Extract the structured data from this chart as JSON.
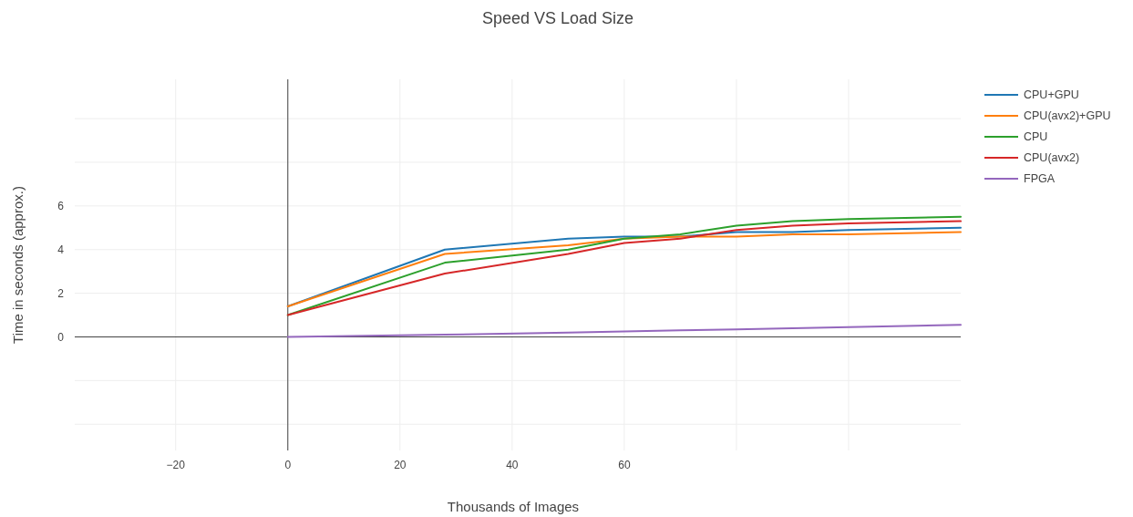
{
  "chart_data": {
    "type": "line",
    "title": "Speed VS Load Size",
    "xlabel": "Thousands of Images",
    "ylabel": "Time in seconds (approx.)",
    "x": [
      0,
      28,
      50,
      60,
      70,
      80,
      90,
      100,
      120
    ],
    "series": [
      {
        "name": "CPU+GPU",
        "color": "#1f77b4",
        "values": [
          1.4,
          4.0,
          4.5,
          4.6,
          4.6,
          4.8,
          4.8,
          4.9,
          5.0
        ]
      },
      {
        "name": "CPU(avx2)+GPU",
        "color": "#ff7f0e",
        "values": [
          1.4,
          3.8,
          4.2,
          4.5,
          4.6,
          4.6,
          4.7,
          4.7,
          4.8
        ]
      },
      {
        "name": "CPU",
        "color": "#2ca02c",
        "values": [
          1.0,
          3.4,
          4.0,
          4.5,
          4.7,
          5.1,
          5.3,
          5.4,
          5.5
        ]
      },
      {
        "name": "CPU(avx2)",
        "color": "#d62728",
        "values": [
          1.0,
          2.9,
          3.8,
          4.3,
          4.5,
          4.9,
          5.1,
          5.2,
          5.3
        ]
      },
      {
        "name": "FPGA",
        "color": "#9467bd",
        "values": [
          0,
          0.1,
          0.2,
          0.25,
          0.3,
          0.35,
          0.4,
          0.45,
          0.55
        ]
      }
    ],
    "xlim": [
      -38,
      120
    ],
    "xticks": [
      -20,
      0,
      20,
      40,
      60,
      {
        "value": 80,
        "label": null
      },
      {
        "value": 100,
        "label": null
      }
    ],
    "ylim": [
      -5.2,
      11.8
    ],
    "yticks": [
      {
        "value": -4,
        "label": null
      },
      {
        "value": -2,
        "label": null
      },
      0,
      2,
      4,
      6,
      {
        "value": 8,
        "label": null
      },
      {
        "value": 10,
        "label": null
      }
    ],
    "grid": true,
    "legend": "top right"
  }
}
